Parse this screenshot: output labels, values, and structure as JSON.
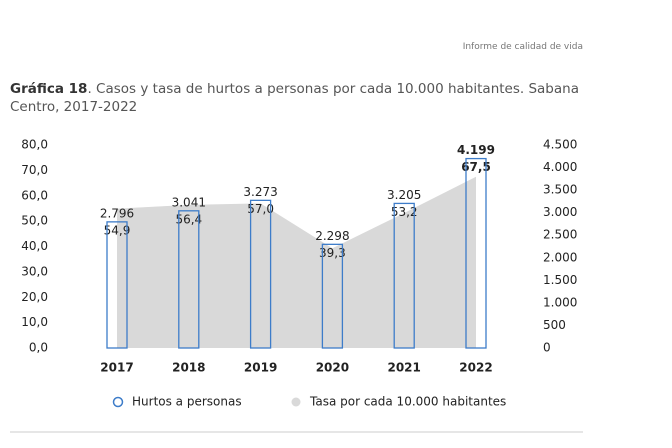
{
  "report_header": "Informe de calidad de vida",
  "chart_data": {
    "type": "combo",
    "title_label": "Gráfica 18",
    "title": ". Casos y tasa de hurtos a personas por cada 10.000 habitantes. Sabana Centro, 2017-2022",
    "categories": [
      "2017",
      "2018",
      "2019",
      "2020",
      "2021",
      "2022"
    ],
    "series": [
      {
        "name": "Hurtos a personas",
        "type": "bar",
        "axis": "y2",
        "color": "#3d7cc9",
        "values": [
          2796,
          3041,
          3273,
          2298,
          3205,
          4199
        ],
        "value_labels": [
          "2.796",
          "3.041",
          "3.273",
          "2.298",
          "3.205",
          "4.199"
        ]
      },
      {
        "name": "Tasa por cada 10.000 habitantes",
        "type": "area",
        "color": "#d9d9d9",
        "values": [
          54.9,
          56.4,
          57.0,
          39.3,
          53.2,
          67.5
        ],
        "value_labels": [
          "54,9",
          "56,4",
          "57,0",
          "39,3",
          "53,2",
          "67,5"
        ]
      }
    ],
    "ylim": [
      0,
      80
    ],
    "yticks": [
      {
        "value": 0,
        "label": "0,0"
      },
      {
        "value": 10,
        "label": "10,0"
      },
      {
        "value": 20,
        "label": "20,0"
      },
      {
        "value": 30,
        "label": "30,0"
      },
      {
        "value": 40,
        "label": "40,0"
      },
      {
        "value": 50,
        "label": "50,0"
      },
      {
        "value": 60,
        "label": "60,0"
      },
      {
        "value": 70,
        "label": "70,0"
      },
      {
        "value": 80,
        "label": "80,0"
      }
    ],
    "y2lim": [
      0,
      4500
    ],
    "y2ticks": [
      0,
      500,
      {
        "value": 1000,
        "label": "1.000"
      },
      {
        "value": 1500,
        "label": "1.500"
      },
      {
        "value": 2000,
        "label": "2.000"
      },
      {
        "value": 2500,
        "label": "2.500"
      },
      {
        "value": 3000,
        "label": "3.000"
      },
      {
        "value": 3500,
        "label": "3.500"
      },
      {
        "value": 4000,
        "label": "4.000"
      },
      {
        "value": 4500,
        "label": "4.500"
      }
    ]
  }
}
